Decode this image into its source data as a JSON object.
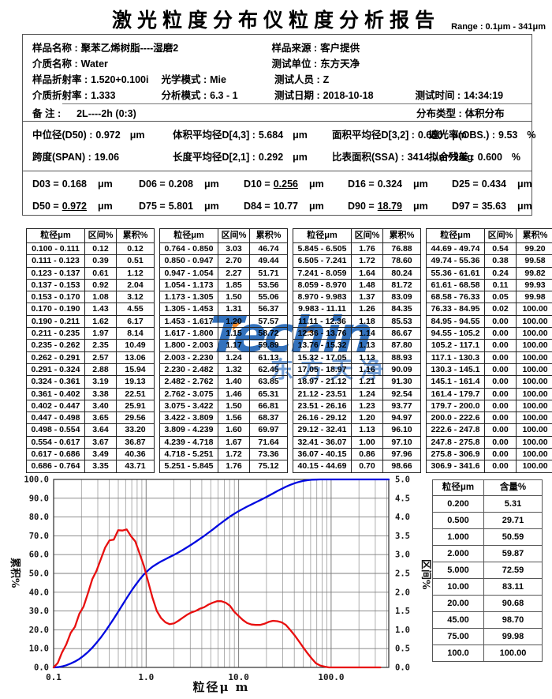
{
  "title": "激光粒度分布仪粒度分析报告",
  "range_label": "Range : 0.1μm - 341μm",
  "info": {
    "sample_name_label": "样品名称 :",
    "sample_name": "聚苯乙烯树脂----湿磨2",
    "sample_source_label": "样品来源 :",
    "sample_source": "客户提供",
    "medium_label": "介质名称 :",
    "medium": "Water",
    "test_org_label": "测试单位 :",
    "test_org": "东方天净",
    "sample_ri_label": "样品折射率 :",
    "sample_ri": "1.520+0.100i",
    "optical_label": "光学模式 :",
    "optical": "Mie",
    "tester_label": "测试人员 :",
    "tester": "Z",
    "medium_ri_label": "介质折射率 :",
    "medium_ri": "1.333",
    "analysis_label": "分析模式 :",
    "analysis": "6.3 - 1",
    "date_label": "测试日期 :",
    "date": "2018-10-18",
    "time_label": "测试时间 :",
    "time": "14:34:19",
    "remark_label": "备  注 :",
    "remark": "2L----2h  (0:3)",
    "dist_label": "分布类型 :",
    "dist": "体积分布"
  },
  "stats": [
    {
      "label": "中位径(D50) :",
      "value": "0.972",
      "unit": "μm"
    },
    {
      "label": "体积平均径D[4,3] :",
      "value": "5.684",
      "unit": "μm"
    },
    {
      "label": "面积平均径D[3,2] :",
      "value": "0.650",
      "unit": "μm"
    },
    {
      "label": "遮光率(OBS.) :",
      "value": "9.53",
      "unit": "%"
    },
    {
      "label": "跨度(SPAN) :",
      "value": "19.06",
      "unit": ""
    },
    {
      "label": "长度平均径D[2,1] :",
      "value": "0.292",
      "unit": "μm"
    },
    {
      "label": "比表面积(SSA) :",
      "value": "3414",
      "unit": "m^2/kg"
    },
    {
      "label": "拟合残差 :",
      "value": "0.600",
      "unit": "%"
    }
  ],
  "dvalues": [
    {
      "name": "D03 =",
      "value": "0.168",
      "unit": "μm",
      "underline": false
    },
    {
      "name": "D06 =",
      "value": "0.208",
      "unit": "μm",
      "underline": false
    },
    {
      "name": "D10 =",
      "value": "0.256",
      "unit": "μm",
      "underline": true
    },
    {
      "name": "D16 =",
      "value": "0.324",
      "unit": "μm",
      "underline": false
    },
    {
      "name": "D25 =",
      "value": "0.434",
      "unit": "μm",
      "underline": false
    },
    {
      "name": "D50 =",
      "value": "0.972",
      "unit": "μm",
      "underline": true
    },
    {
      "name": "D75 =",
      "value": "5.801",
      "unit": "μm",
      "underline": false
    },
    {
      "name": "D84 =",
      "value": "10.77",
      "unit": "μm",
      "underline": false
    },
    {
      "name": "D90 =",
      "value": "18.79",
      "unit": "μm",
      "underline": true
    },
    {
      "name": "D97 =",
      "value": "35.63",
      "unit": "μm",
      "underline": false
    }
  ],
  "bins": {
    "headers": [
      "粒径μm",
      "区间%",
      "累积%"
    ],
    "groups": [
      [
        [
          "0.100 - 0.111",
          "0.12",
          "0.12"
        ],
        [
          "0.111 - 0.123",
          "0.39",
          "0.51"
        ],
        [
          "0.123 - 0.137",
          "0.61",
          "1.12"
        ],
        [
          "0.137 - 0.153",
          "0.92",
          "2.04"
        ],
        [
          "0.153 - 0.170",
          "1.08",
          "3.12"
        ],
        [
          "0.170 - 0.190",
          "1.43",
          "4.55"
        ],
        [
          "0.190 - 0.211",
          "1.62",
          "6.17"
        ],
        [
          "0.211 - 0.235",
          "1.97",
          "8.14"
        ],
        [
          "0.235 - 0.262",
          "2.35",
          "10.49"
        ],
        [
          "0.262 - 0.291",
          "2.57",
          "13.06"
        ],
        [
          "0.291 - 0.324",
          "2.88",
          "15.94"
        ],
        [
          "0.324 - 0.361",
          "3.19",
          "19.13"
        ],
        [
          "0.361 - 0.402",
          "3.38",
          "22.51"
        ],
        [
          "0.402 - 0.447",
          "3.40",
          "25.91"
        ],
        [
          "0.447 - 0.498",
          "3.65",
          "29.56"
        ],
        [
          "0.498 - 0.554",
          "3.64",
          "33.20"
        ],
        [
          "0.554 - 0.617",
          "3.67",
          "36.87"
        ],
        [
          "0.617 - 0.686",
          "3.49",
          "40.36"
        ],
        [
          "0.686 - 0.764",
          "3.35",
          "43.71"
        ]
      ],
      [
        [
          "0.764 - 0.850",
          "3.03",
          "46.74"
        ],
        [
          "0.850 - 0.947",
          "2.70",
          "49.44"
        ],
        [
          "0.947 - 1.054",
          "2.27",
          "51.71"
        ],
        [
          "1.054 - 1.173",
          "1.85",
          "53.56"
        ],
        [
          "1.173 - 1.305",
          "1.50",
          "55.06"
        ],
        [
          "1.305 - 1.453",
          "1.31",
          "56.37"
        ],
        [
          "1.453 - 1.617",
          "1.20",
          "57.57"
        ],
        [
          "1.617 - 1.800",
          "1.15",
          "58.72"
        ],
        [
          "1.800 - 2.003",
          "1.17",
          "59.89"
        ],
        [
          "2.003 - 2.230",
          "1.24",
          "61.13"
        ],
        [
          "2.230 - 2.482",
          "1.32",
          "62.45"
        ],
        [
          "2.482 - 2.762",
          "1.40",
          "63.85"
        ],
        [
          "2.762 - 3.075",
          "1.46",
          "65.31"
        ],
        [
          "3.075 - 3.422",
          "1.50",
          "66.81"
        ],
        [
          "3.422 - 3.809",
          "1.56",
          "68.37"
        ],
        [
          "3.809 - 4.239",
          "1.60",
          "69.97"
        ],
        [
          "4.239 - 4.718",
          "1.67",
          "71.64"
        ],
        [
          "4.718 - 5.251",
          "1.72",
          "73.36"
        ],
        [
          "5.251 - 5.845",
          "1.76",
          "75.12"
        ]
      ],
      [
        [
          "5.845 - 6.505",
          "1.76",
          "76.88"
        ],
        [
          "6.505 - 7.241",
          "1.72",
          "78.60"
        ],
        [
          "7.241 - 8.059",
          "1.64",
          "80.24"
        ],
        [
          "8.059 - 8.970",
          "1.48",
          "81.72"
        ],
        [
          "8.970 - 9.983",
          "1.37",
          "83.09"
        ],
        [
          "9.983 - 11.11",
          "1.26",
          "84.35"
        ],
        [
          "11.11 - 12.36",
          "1.18",
          "85.53"
        ],
        [
          "12.36 - 13.76",
          "1.14",
          "86.67"
        ],
        [
          "13.76 - 15.32",
          "1.13",
          "87.80"
        ],
        [
          "15.32 - 17.05",
          "1.13",
          "88.93"
        ],
        [
          "17.05 - 18.97",
          "1.16",
          "90.09"
        ],
        [
          "18.97 - 21.12",
          "1.21",
          "91.30"
        ],
        [
          "21.12 - 23.51",
          "1.24",
          "92.54"
        ],
        [
          "23.51 - 26.16",
          "1.23",
          "93.77"
        ],
        [
          "26.16 - 29.12",
          "1.20",
          "94.97"
        ],
        [
          "29.12 - 32.41",
          "1.13",
          "96.10"
        ],
        [
          "32.41 - 36.07",
          "1.00",
          "97.10"
        ],
        [
          "36.07 - 40.15",
          "0.86",
          "97.96"
        ],
        [
          "40.15 - 44.69",
          "0.70",
          "98.66"
        ]
      ],
      [
        [
          "44.69 - 49.74",
          "0.54",
          "99.20"
        ],
        [
          "49.74 - 55.36",
          "0.38",
          "99.58"
        ],
        [
          "55.36 - 61.61",
          "0.24",
          "99.82"
        ],
        [
          "61.61 - 68.58",
          "0.11",
          "99.93"
        ],
        [
          "68.58 - 76.33",
          "0.05",
          "99.98"
        ],
        [
          "76.33 - 84.95",
          "0.02",
          "100.00"
        ],
        [
          "84.95 - 94.55",
          "0.00",
          "100.00"
        ],
        [
          "94.55 - 105.2",
          "0.00",
          "100.00"
        ],
        [
          "105.2 - 117.1",
          "0.00",
          "100.00"
        ],
        [
          "117.1 - 130.3",
          "0.00",
          "100.00"
        ],
        [
          "130.3 - 145.1",
          "0.00",
          "100.00"
        ],
        [
          "145.1 - 161.4",
          "0.00",
          "100.00"
        ],
        [
          "161.4 - 179.7",
          "0.00",
          "100.00"
        ],
        [
          "179.7 - 200.0",
          "0.00",
          "100.00"
        ],
        [
          "200.0 - 222.6",
          "0.00",
          "100.00"
        ],
        [
          "222.6 - 247.8",
          "0.00",
          "100.00"
        ],
        [
          "247.8 - 275.8",
          "0.00",
          "100.00"
        ],
        [
          "275.8 - 306.9",
          "0.00",
          "100.00"
        ],
        [
          "306.9 - 341.6",
          "0.00",
          "100.00"
        ]
      ]
    ]
  },
  "content_table": {
    "headers": [
      "粒径μm",
      "含量%"
    ],
    "rows": [
      [
        "0.200",
        "5.31"
      ],
      [
        "0.500",
        "29.71"
      ],
      [
        "1.000",
        "50.59"
      ],
      [
        "2.000",
        "59.87"
      ],
      [
        "5.000",
        "72.59"
      ],
      [
        "10.00",
        "83.11"
      ],
      [
        "20.00",
        "90.68"
      ],
      [
        "45.00",
        "98.70"
      ],
      [
        "75.00",
        "99.98"
      ],
      [
        "100.0",
        "100.00"
      ]
    ]
  },
  "watermark": {
    "text": "Techin",
    "subtext": "东方天净",
    "blue": "#175eb4",
    "orange": "#ee7d18"
  },
  "chart_data": {
    "type": "line",
    "x_scale": "log",
    "xlabel": "粒径μ m",
    "ylabel_left": "累积%",
    "ylabel_right": "区间%",
    "xlim": [
      0.1,
      420
    ],
    "ylim_left": [
      0,
      100
    ],
    "ylim_right": [
      0,
      5
    ],
    "left_tick_step": 10,
    "right_tick_step": 0.5,
    "x_tick_values": [
      0.1,
      1,
      10,
      100
    ],
    "x_tick_labels": [
      "0.1",
      "1.0",
      "10.0",
      "100.0"
    ],
    "grid": true,
    "x": [
      0.1,
      0.111,
      0.123,
      0.137,
      0.153,
      0.17,
      0.19,
      0.211,
      0.235,
      0.262,
      0.291,
      0.324,
      0.361,
      0.402,
      0.447,
      0.498,
      0.554,
      0.617,
      0.686,
      0.764,
      0.85,
      0.947,
      1.054,
      1.173,
      1.305,
      1.453,
      1.617,
      1.8,
      2.003,
      2.23,
      2.482,
      2.762,
      3.075,
      3.422,
      3.809,
      4.239,
      4.718,
      5.251,
      5.845,
      6.505,
      7.241,
      8.059,
      8.97,
      9.983,
      11.11,
      12.36,
      13.76,
      15.32,
      17.05,
      18.97,
      21.12,
      23.51,
      26.16,
      29.12,
      32.41,
      36.07,
      40.15,
      44.69,
      49.74,
      55.36,
      61.61,
      68.58,
      76.33,
      84.95,
      94.55,
      105.2,
      117.1,
      130.3,
      145.1,
      161.4,
      179.7,
      200,
      222.6,
      247.8,
      275.8,
      306.9,
      341.6
    ],
    "series": [
      {
        "name": "累积%",
        "axis": "left",
        "color": "#0009e0",
        "y": [
          0,
          0.12,
          0.51,
          1.12,
          2.04,
          3.12,
          4.55,
          6.17,
          8.14,
          10.49,
          13.06,
          15.94,
          19.13,
          22.51,
          25.91,
          29.56,
          33.2,
          36.87,
          40.36,
          43.71,
          46.74,
          49.44,
          51.71,
          53.56,
          55.06,
          56.37,
          57.57,
          58.72,
          59.89,
          61.13,
          62.45,
          63.85,
          65.31,
          66.81,
          68.37,
          69.97,
          71.64,
          73.36,
          75.12,
          76.88,
          78.6,
          80.24,
          81.72,
          83.09,
          84.35,
          85.53,
          86.67,
          87.8,
          88.93,
          90.09,
          91.3,
          92.54,
          93.77,
          94.97,
          96.1,
          97.1,
          97.96,
          98.66,
          99.2,
          99.58,
          99.82,
          99.93,
          99.98,
          100,
          100,
          100,
          100,
          100,
          100,
          100,
          100,
          100,
          100,
          100,
          100,
          100,
          100
        ]
      },
      {
        "name": "区间%",
        "axis": "right",
        "color": "#e80f0f",
        "y": [
          0,
          0.12,
          0.39,
          0.61,
          0.92,
          1.08,
          1.43,
          1.62,
          1.97,
          2.35,
          2.57,
          2.88,
          3.19,
          3.38,
          3.4,
          3.65,
          3.64,
          3.67,
          3.49,
          3.35,
          3.03,
          2.7,
          2.27,
          1.85,
          1.5,
          1.31,
          1.2,
          1.15,
          1.17,
          1.24,
          1.32,
          1.4,
          1.46,
          1.5,
          1.56,
          1.6,
          1.67,
          1.72,
          1.76,
          1.76,
          1.72,
          1.64,
          1.48,
          1.37,
          1.26,
          1.18,
          1.14,
          1.13,
          1.13,
          1.16,
          1.21,
          1.24,
          1.23,
          1.2,
          1.13,
          1,
          0.86,
          0.7,
          0.54,
          0.38,
          0.24,
          0.11,
          0.05,
          0.02,
          0,
          0,
          0,
          0,
          0,
          0,
          0,
          0,
          0,
          0,
          0,
          0,
          0
        ]
      }
    ]
  }
}
